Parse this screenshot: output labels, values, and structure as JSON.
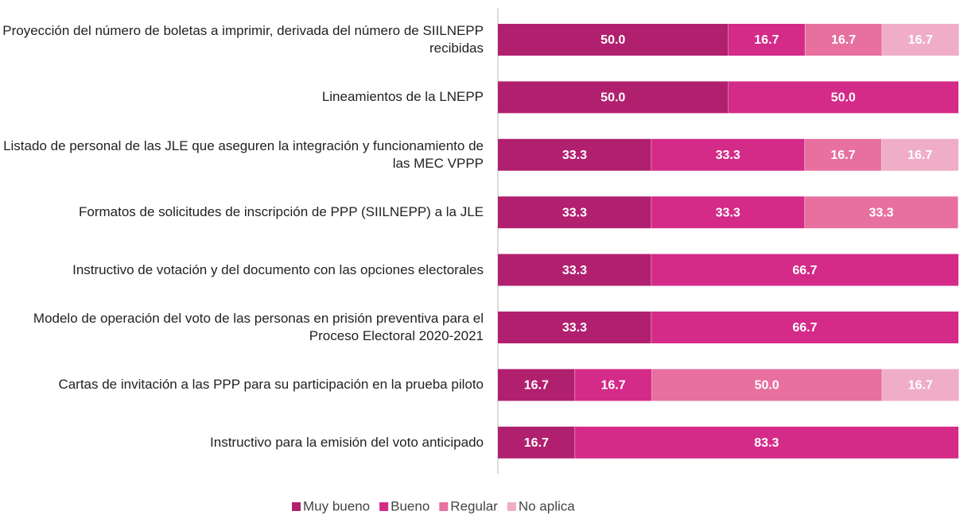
{
  "chart_data": {
    "type": "stacked-bar-horizontal",
    "categories": [
      "Proyección del número de boletas a imprimir, derivada del número de SIILNEPP recibidas",
      "Lineamientos de la LNEPP",
      "Listado de personal de las JLE que aseguren la integración y funcionamiento de las MEC VPPP",
      "Formatos de solicitudes de inscripción de PPP (SIILNEPP) a la JLE",
      "Instructivo de votación y del documento con las opciones electorales",
      "Modelo de operación del voto de las personas en prisión preventiva para el Proceso Electoral 2020-2021",
      "Cartas de invitación a las PPP para su participación en la prueba piloto",
      "Instructivo para la emisión del voto anticipado"
    ],
    "series": [
      {
        "name": "Muy bueno",
        "color": "#b1206f",
        "values": [
          50,
          50,
          33.3,
          33.3,
          33.3,
          33.3,
          16.7,
          16.7
        ],
        "value_labels": [
          "50.0",
          "50.0",
          "33.3",
          "33.3",
          "33.3",
          "33.3",
          "16.7",
          "16.7"
        ]
      },
      {
        "name": "Bueno",
        "color": "#d42a88",
        "values": [
          16.7,
          50,
          33.3,
          33.3,
          66.7,
          66.7,
          16.7,
          83.3
        ],
        "value_labels": [
          "16.7",
          "50.0",
          "33.3",
          "33.3",
          "66.7",
          "66.7",
          "16.7",
          "83.3"
        ]
      },
      {
        "name": "Regular",
        "color": "#e7709f",
        "values": [
          16.7,
          null,
          16.7,
          33.3,
          null,
          null,
          50,
          null
        ],
        "value_labels": [
          "16.7",
          null,
          "16.7",
          "33.3",
          null,
          null,
          "50.0",
          null
        ]
      },
      {
        "name": "No aplica",
        "color": "#efadc8",
        "values": [
          16.7,
          null,
          16.7,
          null,
          null,
          null,
          16.7,
          null
        ],
        "value_labels": [
          "16.7",
          null,
          "16.7",
          null,
          null,
          null,
          "16.7",
          null
        ]
      }
    ],
    "xlim": [
      0,
      100
    ]
  }
}
